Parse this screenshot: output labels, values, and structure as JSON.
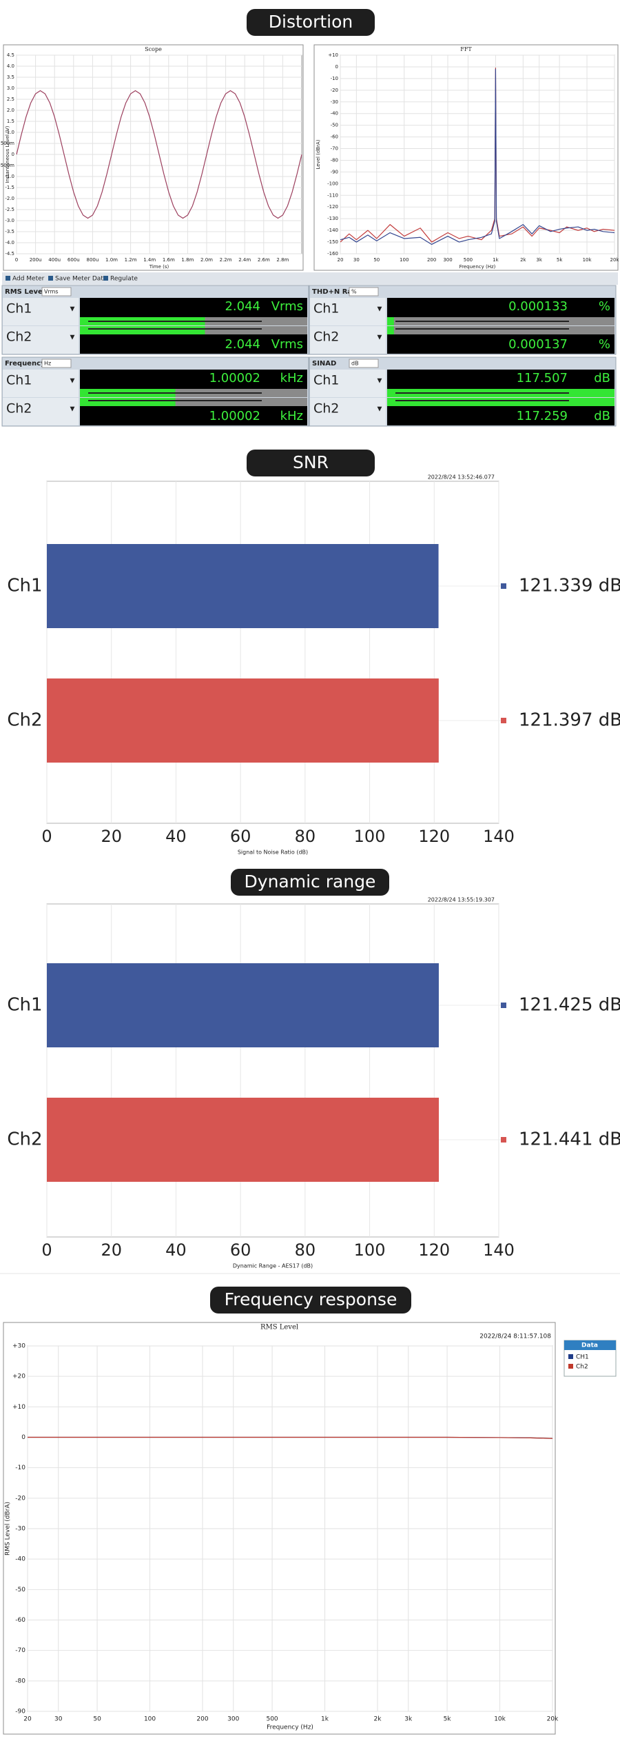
{
  "sections": [
    "Distortion",
    "SNR",
    "Dynamic range",
    "Frequency response"
  ],
  "meters": {
    "toolbar": [
      "Add Meter",
      "Save Meter Data",
      "Regulate"
    ],
    "panels": [
      {
        "title": "RMS Level",
        "unit": "Vrms",
        "rows": [
          {
            "channel": "Ch1",
            "value": "2.044",
            "unit": "Vrms"
          },
          {
            "channel": "Ch2",
            "value": "2.044",
            "unit": "Vrms"
          }
        ]
      },
      {
        "title": "THD+N Ratio",
        "unit": "%",
        "rows": [
          {
            "channel": "Ch1",
            "value": "0.000133",
            "unit": "%"
          },
          {
            "channel": "Ch2",
            "value": "0.000137",
            "unit": "%"
          }
        ]
      },
      {
        "title": "Frequency",
        "unit": "Hz",
        "rows": [
          {
            "channel": "Ch1",
            "value": "1.00002",
            "unit": "kHz"
          },
          {
            "channel": "Ch2",
            "value": "1.00002",
            "unit": "kHz"
          }
        ]
      },
      {
        "title": "SINAD",
        "unit": "dB",
        "rows": [
          {
            "channel": "Ch1",
            "value": "117.507",
            "unit": "dB"
          },
          {
            "channel": "Ch2",
            "value": "117.259",
            "unit": "dB"
          }
        ]
      }
    ]
  },
  "chart_data": [
    {
      "type": "line",
      "title": "Scope",
      "x_label": "Time (s)",
      "y_label": "Instantaneous Level (V)",
      "grid": true,
      "xlim": [
        0,
        0.003
      ],
      "ylim": [
        -4.5,
        4.5
      ],
      "xticks": [
        0,
        {
          "value": 0.0002,
          "label": "200u"
        },
        {
          "value": 0.0004,
          "label": "400u"
        },
        {
          "value": 0.0006,
          "label": "600u"
        },
        {
          "value": 0.0008,
          "label": "800u"
        },
        {
          "value": 0.001,
          "label": "1.0m"
        },
        {
          "value": 0.0012,
          "label": "1.2m"
        },
        {
          "value": 0.0014,
          "label": "1.4m"
        },
        {
          "value": 0.0016,
          "label": "1.6m"
        },
        {
          "value": 0.0018,
          "label": "1.8m"
        },
        {
          "value": 0.002,
          "label": "2.0m"
        },
        {
          "value": 0.0022,
          "label": "2.2m"
        },
        {
          "value": 0.0024,
          "label": "2.4m"
        },
        {
          "value": 0.0026,
          "label": "2.6m"
        },
        {
          "value": 0.0028,
          "label": "2.8m"
        }
      ],
      "yticks": [
        4.5,
        {
          "value": 4,
          "label": "4.0"
        },
        3.5,
        {
          "value": 3,
          "label": "3.0"
        },
        2.5,
        {
          "value": 2,
          "label": "2.0"
        },
        1.5,
        {
          "value": 1,
          "label": "1.0"
        },
        {
          "value": 0.5,
          "label": "500m"
        },
        0,
        {
          "value": -0.5,
          "label": "-500m"
        },
        {
          "value": -1,
          "label": "-1.0"
        },
        -1.5,
        {
          "value": -2,
          "label": "-2.0"
        },
        -2.5,
        {
          "value": -3,
          "label": "-3.0"
        },
        -3.5,
        {
          "value": -4,
          "label": "-4.0"
        },
        -4.5
      ],
      "x": [
        0,
        5e-05,
        0.0001,
        0.00015,
        0.0002,
        0.00025,
        0.0003,
        0.00035,
        0.0004,
        0.00045,
        0.0005,
        0.00055,
        0.0006,
        0.00065,
        0.0007,
        0.00075,
        0.0008,
        0.00085,
        0.0009,
        0.00095,
        0.001,
        0.00105,
        0.0011,
        0.00115,
        0.0012,
        0.00125,
        0.0013,
        0.00135,
        0.0014,
        0.00145,
        0.0015,
        0.00155,
        0.0016,
        0.00165,
        0.0017,
        0.00175,
        0.0018,
        0.00185,
        0.0019,
        0.00195,
        0.002,
        0.00205,
        0.0021,
        0.00215,
        0.0022,
        0.00225,
        0.0023,
        0.00235,
        0.0024,
        0.00245,
        0.0025,
        0.00255,
        0.0026,
        0.00265,
        0.0027,
        0.00275,
        0.0028,
        0.00285,
        0.0029,
        0.00295,
        0.003
      ],
      "series": [
        {
          "color": "#9b3d5c",
          "values": [
            0,
            0.89,
            1.7,
            2.34,
            2.75,
            2.89,
            2.75,
            2.34,
            1.7,
            0.89,
            0,
            -0.89,
            -1.7,
            -2.34,
            -2.75,
            -2.89,
            -2.75,
            -2.34,
            -1.7,
            -0.89,
            0,
            0.89,
            1.7,
            2.34,
            2.75,
            2.89,
            2.75,
            2.34,
            1.7,
            0.89,
            0,
            -0.89,
            -1.7,
            -2.34,
            -2.75,
            -2.89,
            -2.75,
            -2.34,
            -1.7,
            -0.89,
            0,
            0.89,
            1.7,
            2.34,
            2.75,
            2.89,
            2.75,
            2.34,
            1.7,
            0.89,
            0,
            -0.89,
            -1.7,
            -2.34,
            -2.75,
            -2.89,
            -2.75,
            -2.34,
            -1.7,
            -0.89,
            0
          ]
        }
      ]
    },
    {
      "type": "line",
      "title": "FFT",
      "x_label": "Frequency (Hz)",
      "y_label": "Level (dBrA)",
      "grid": true,
      "xlog": true,
      "xlim": [
        20,
        20000
      ],
      "ylim": [
        -160,
        10
      ],
      "xticks": [
        20,
        30,
        50,
        100,
        200,
        300,
        500,
        {
          "value": 1000,
          "label": "1k"
        },
        {
          "value": 2000,
          "label": "2k"
        },
        {
          "value": 3000,
          "label": "3k"
        },
        {
          "value": 5000,
          "label": "5k"
        },
        {
          "value": 10000,
          "label": "10k"
        },
        {
          "value": 20000,
          "label": "20k"
        }
      ],
      "yticks": [
        {
          "value": 10,
          "label": "+10"
        },
        0,
        -10,
        -20,
        -30,
        -40,
        -50,
        -60,
        -70,
        -80,
        -90,
        -100,
        -110,
        -120,
        -130,
        -140,
        -150,
        -160
      ],
      "x": [
        20,
        25,
        30,
        40,
        50,
        70,
        100,
        150,
        200,
        300,
        400,
        500,
        700,
        900,
        980,
        1000,
        1020,
        1100,
        1500,
        2000,
        2500,
        3000,
        4000,
        5000,
        6000,
        8000,
        10000,
        12000,
        15000,
        20000
      ],
      "series": [
        {
          "color": "#c23b3b",
          "values": [
            -150,
            -143,
            -148,
            -140,
            -147,
            -135,
            -145,
            -138,
            -150,
            -142,
            -147,
            -145,
            -148,
            -140,
            -130,
            -1,
            -130,
            -145,
            -143,
            -137,
            -145,
            -138,
            -140,
            -142,
            -137,
            -140,
            -138,
            -141,
            -139,
            -140
          ]
        },
        {
          "color": "#34468f",
          "values": [
            -148,
            -146,
            -150,
            -144,
            -149,
            -142,
            -147,
            -146,
            -152,
            -145,
            -150,
            -148,
            -146,
            -143,
            -132,
            -2,
            -132,
            -147,
            -141,
            -135,
            -143,
            -136,
            -141,
            -139,
            -138,
            -137,
            -140,
            -139,
            -141,
            -142
          ]
        }
      ]
    },
    {
      "type": "bar",
      "timestamp": "2022/8/24 13:52:46.077",
      "x_label": "Signal to Noise Ratio (dB)",
      "grid": true,
      "categories": [
        "Ch1",
        "Ch2"
      ],
      "values": [
        121.339,
        121.397
      ],
      "value_labels": [
        "121.339 dB",
        "121.397 dB"
      ],
      "colors": [
        "#40599b",
        "#d65551"
      ],
      "xlim": [
        0,
        140
      ],
      "xticks": [
        0,
        20,
        40,
        60,
        80,
        100,
        120,
        140
      ]
    },
    {
      "type": "bar",
      "timestamp": "2022/8/24 13:55:19.307",
      "x_label": "Dynamic Range - AES17 (dB)",
      "grid": true,
      "categories": [
        "Ch1",
        "Ch2"
      ],
      "values": [
        121.425,
        121.441
      ],
      "value_labels": [
        "121.425 dB",
        "121.441 dB"
      ],
      "colors": [
        "#40599b",
        "#d65551"
      ],
      "xlim": [
        0,
        140
      ],
      "xticks": [
        0,
        20,
        40,
        60,
        80,
        100,
        120,
        140
      ]
    },
    {
      "type": "line",
      "title": "RMS Level",
      "timestamp": "2022/8/24 8:11:57.108",
      "x_label": "Frequency (Hz)",
      "y_label": "RMS Level (dBrA)",
      "grid": true,
      "xlog": true,
      "legend_title": "Data",
      "xlim": [
        20,
        20000
      ],
      "ylim": [
        -90,
        30
      ],
      "xticks": [
        20,
        30,
        50,
        100,
        200,
        300,
        500,
        {
          "value": 1000,
          "label": "1k"
        },
        {
          "value": 2000,
          "label": "2k"
        },
        {
          "value": 3000,
          "label": "3k"
        },
        {
          "value": 5000,
          "label": "5k"
        },
        {
          "value": 10000,
          "label": "10k"
        },
        {
          "value": 20000,
          "label": "20k"
        }
      ],
      "yticks": [
        {
          "value": 30,
          "label": "+30"
        },
        {
          "value": 20,
          "label": "+20"
        },
        {
          "value": 10,
          "label": "+10"
        },
        0,
        -10,
        -20,
        -30,
        -40,
        -50,
        -60,
        -70,
        -80,
        -90
      ],
      "x": [
        20,
        30,
        50,
        100,
        200,
        500,
        1000,
        2000,
        5000,
        10000,
        15000,
        20000
      ],
      "series": [
        {
          "name": "CH1",
          "color": "#1f3c88",
          "values": [
            0,
            0,
            0,
            0,
            0,
            0,
            0,
            0,
            0,
            -0.1,
            -0.2,
            -0.4
          ]
        },
        {
          "name": "Ch2",
          "color": "#c0392b",
          "values": [
            0,
            0,
            0,
            0,
            0,
            0,
            0,
            0,
            0,
            -0.1,
            -0.2,
            -0.4
          ]
        }
      ]
    }
  ]
}
